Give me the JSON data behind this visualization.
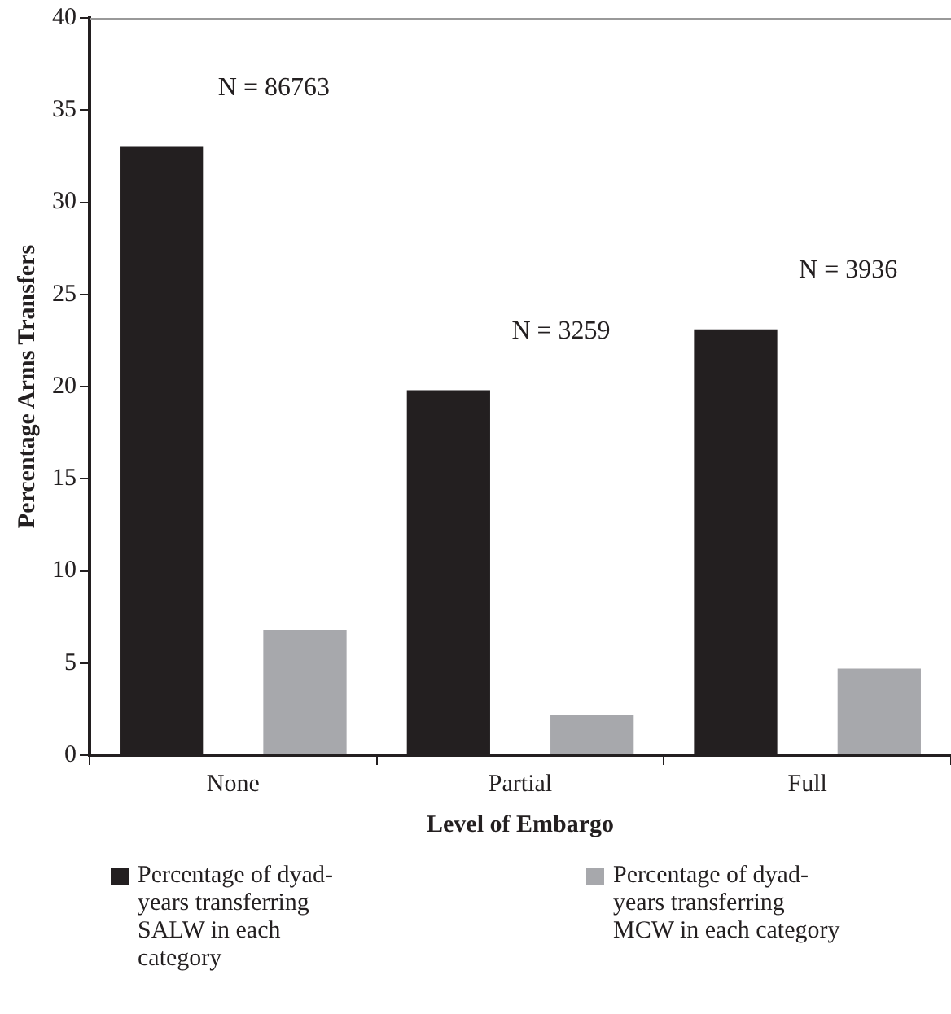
{
  "chart_data": {
    "type": "bar",
    "xlabel": "Level of Embargo",
    "ylabel": "Percentage Arms Transfers",
    "categories": [
      "None",
      "Partial",
      "Full"
    ],
    "series": [
      {
        "name": "Percentage of dyad-years transferring SALW in each category",
        "color": "#231f20",
        "values": [
          33.0,
          19.8,
          23.1
        ]
      },
      {
        "name": "Percentage of dyad-years transferring MCW in each category",
        "color": "#a7a8ac",
        "values": [
          6.8,
          2.2,
          4.7
        ]
      }
    ],
    "ylim": [
      0,
      40
    ],
    "yticks": [
      0,
      5,
      10,
      15,
      20,
      25,
      30,
      35,
      40
    ],
    "grid": false,
    "legend": "bottom",
    "annotations": [
      "N = 86763",
      "N = 3259",
      "N = 3936"
    ]
  }
}
